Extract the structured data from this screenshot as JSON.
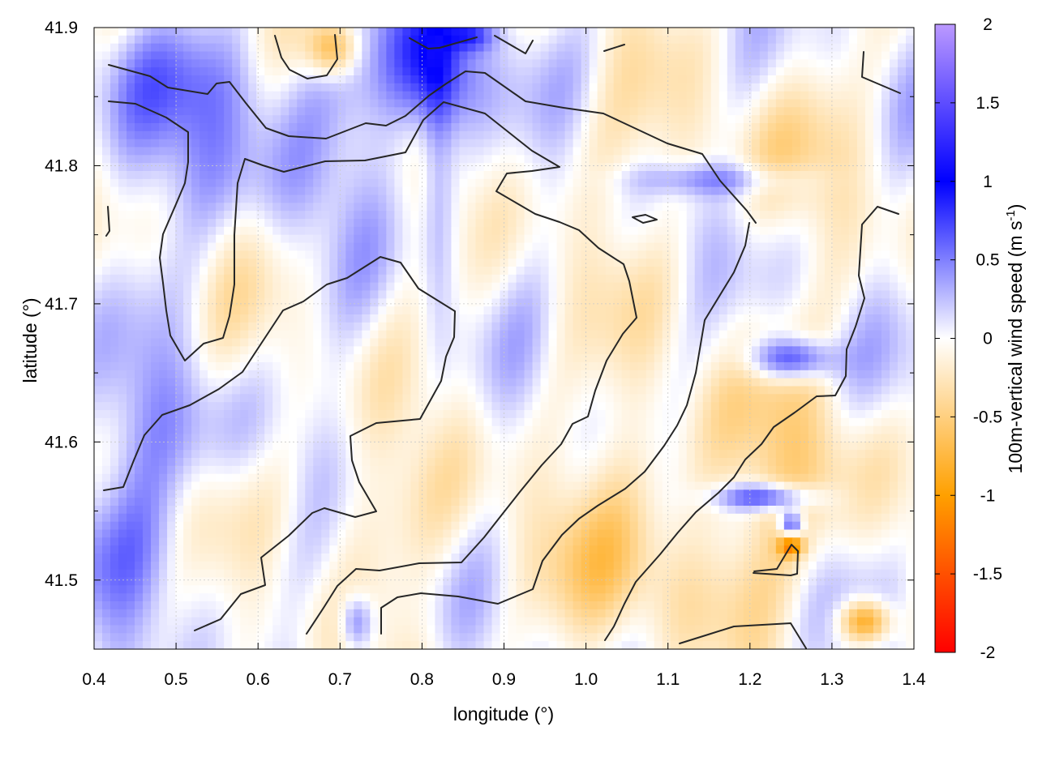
{
  "chart_data": {
    "type": "heatmap",
    "title": "",
    "xlabel": "longitude (°)",
    "ylabel": "latitude (°)",
    "colorbar_label": "100m-vertical wind speed (m s-1)",
    "colorbar_label_main": "100m-vertical wind speed (m s",
    "colorbar_label_sup": "-1",
    "colorbar_label_end": ")",
    "xlim": [
      0.4,
      1.4
    ],
    "ylim": [
      41.45,
      41.9
    ],
    "clim": [
      -2,
      2
    ],
    "x_ticks": [
      "0.4",
      "0.5",
      "0.6",
      "0.7",
      "0.8",
      "0.9",
      "1.0",
      "1.1",
      "1.2",
      "1.3",
      "1.4"
    ],
    "y_ticks": [
      "41.5",
      "41.6",
      "41.7",
      "41.8",
      "41.9"
    ],
    "colorbar_ticks": [
      "2",
      "1.5",
      "1",
      "0.5",
      "0",
      "-0.5",
      "-1",
      "-1.5",
      "-2"
    ],
    "grid": true,
    "colormap": [
      {
        "value": -2,
        "color": "#ff0000"
      },
      {
        "value": -1,
        "color": "#ffa000"
      },
      {
        "value": 0,
        "color": "#ffffff"
      },
      {
        "value": 1,
        "color": "#0000ff"
      },
      {
        "value": 2,
        "color": "#bb99ff"
      }
    ],
    "overlay": "black terrain contour lines"
  }
}
